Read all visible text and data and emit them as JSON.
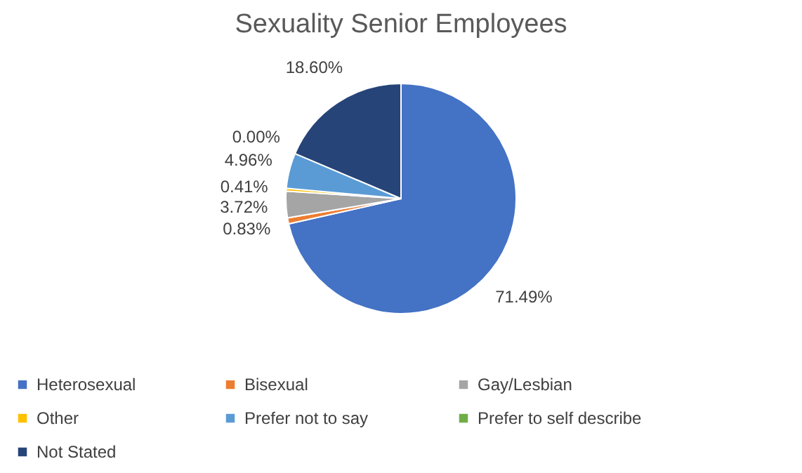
{
  "chart_data": {
    "type": "pie",
    "title": "Sexuality Senior Employees",
    "categories": [
      "Heterosexual",
      "Bisexual",
      "Gay/Lesbian",
      "Other",
      "Prefer not to say",
      "Prefer to self describe",
      "Not Stated"
    ],
    "values": [
      71.49,
      0.83,
      3.72,
      0.41,
      4.96,
      0.0,
      18.6
    ],
    "colors": [
      "#4472c4",
      "#ed7d31",
      "#a5a5a5",
      "#ffc000",
      "#5b9bd5",
      "#70ad47",
      "#264478"
    ],
    "value_labels": [
      "71.49%",
      "0.83%",
      "3.72%",
      "0.41%",
      "4.96%",
      "0.00%",
      "18.60%"
    ],
    "legend": "bottom"
  }
}
